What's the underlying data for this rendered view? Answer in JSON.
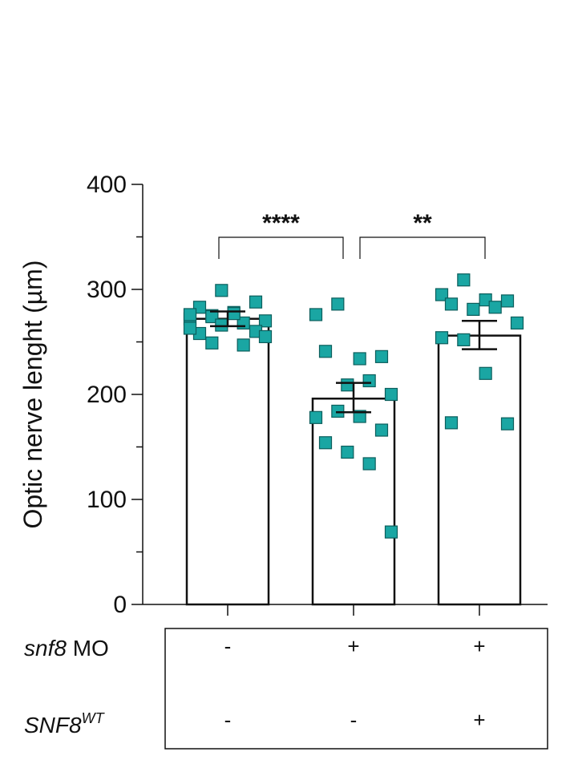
{
  "chart_data": {
    "type": "bar",
    "ylabel": "Optic nerve lenght (µm)",
    "ylim": [
      0,
      400
    ],
    "yticks": [
      "0",
      "100",
      "200",
      "300",
      "400"
    ],
    "colors": {
      "point": "#1aa6a3",
      "point_edge": "#0c5e5c",
      "bar_edge": "#111111"
    },
    "groups": [
      {
        "mean": 272,
        "sem_low": 265,
        "sem_high": 279,
        "points": [
          272,
          275,
          278,
          288,
          283,
          299,
          268,
          270,
          276,
          274,
          277,
          260,
          258,
          266,
          247,
          255,
          263,
          249
        ]
      },
      {
        "mean": 196,
        "sem_low": 183,
        "sem_high": 211,
        "points": [
          276,
          286,
          234,
          236,
          241,
          209,
          213,
          200,
          178,
          184,
          179,
          166,
          154,
          145,
          134,
          69
        ]
      },
      {
        "mean": 256,
        "sem_low": 243,
        "sem_high": 270,
        "points": [
          295,
          309,
          290,
          289,
          286,
          281,
          283,
          268,
          254,
          252,
          220,
          172,
          173
        ]
      }
    ],
    "comparisons": [
      {
        "from": 0,
        "to": 1,
        "label": "****"
      },
      {
        "from": 1,
        "to": 2,
        "label": "**"
      }
    ]
  },
  "conditions": {
    "rows": [
      {
        "label_italic": "snf8",
        "label_rest": " MO",
        "values": [
          "-",
          "+",
          "+"
        ]
      },
      {
        "label_italic": "SNF8",
        "label_sup": "WT",
        "values": [
          "-",
          "-",
          "+"
        ]
      }
    ]
  }
}
